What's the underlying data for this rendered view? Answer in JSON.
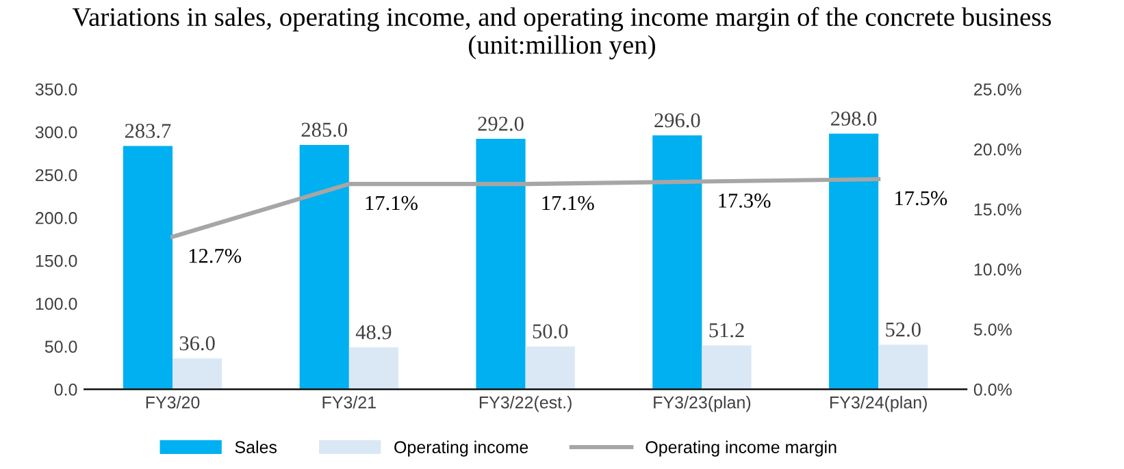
{
  "chart_data": {
    "type": "bar",
    "title": "Variations in sales, operating income, and operating income margin of the concrete business\n(unit:million yen)",
    "categories": [
      "FY3/20",
      "FY3/21",
      "FY3/22(est.)",
      "FY3/23(plan)",
      "FY3/24(plan)"
    ],
    "series": [
      {
        "name": "Sales",
        "color": "#00b0f0",
        "values": [
          283.7,
          285.0,
          292.0,
          296.0,
          298.0
        ],
        "value_labels": [
          "283.7",
          "285.0",
          "292.0",
          "296.0",
          "298.0"
        ]
      },
      {
        "name": "Operating income",
        "color": "#dae8f6",
        "values": [
          36.0,
          48.9,
          50.0,
          51.2,
          52.0
        ],
        "value_labels": [
          "36.0",
          "48.9",
          "50.0",
          "51.2",
          "52.0"
        ]
      },
      {
        "name": "Operating income margin",
        "type": "line",
        "axis": "y2",
        "color": "#a6a6a6",
        "values": [
          12.7,
          17.1,
          17.1,
          17.3,
          17.5
        ],
        "value_labels": [
          "12.7%",
          "17.1%",
          "17.1%",
          "17.3%",
          "17.5%"
        ]
      }
    ],
    "ylim": [
      0,
      350
    ],
    "yticks": [
      {
        "value": 0,
        "label": "0.0"
      },
      {
        "value": 50,
        "label": "50.0"
      },
      {
        "value": 100,
        "label": "100.0"
      },
      {
        "value": 150,
        "label": "150.0"
      },
      {
        "value": 200,
        "label": "200.0"
      },
      {
        "value": 250,
        "label": "250.0"
      },
      {
        "value": 300,
        "label": "300.0"
      },
      {
        "value": 350,
        "label": "350.0"
      }
    ],
    "y2lim": [
      0,
      25
    ],
    "y2ticks": [
      {
        "value": 0,
        "label": "0.0%"
      },
      {
        "value": 5,
        "label": "5.0%"
      },
      {
        "value": 10,
        "label": "10.0%"
      },
      {
        "value": 15,
        "label": "15.0%"
      },
      {
        "value": 20,
        "label": "20.0%"
      },
      {
        "value": 25,
        "label": "25.0%"
      }
    ],
    "grid": false,
    "legend": "bottom",
    "marker": "none",
    "line_style": "solid"
  }
}
